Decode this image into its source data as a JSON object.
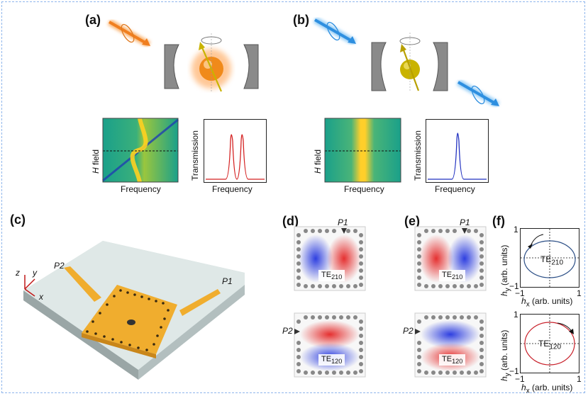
{
  "panels": {
    "a": {
      "label": "(a)"
    },
    "b": {
      "label": "(b)"
    },
    "c": {
      "label": "(c)"
    },
    "d": {
      "label": "(d)"
    },
    "e": {
      "label": "(e)"
    },
    "f": {
      "label": "(f)"
    }
  },
  "plots_a": {
    "heatmap_ylabel_italic": "H",
    "heatmap_ylabel_rest": " field",
    "heatmap_xlabel": "Frequency",
    "trans_ylabel": "Transmission",
    "trans_xlabel": "Frequency"
  },
  "plots_b": {
    "heatmap_ylabel_italic": "H",
    "heatmap_ylabel_rest": " field",
    "heatmap_xlabel": "Frequency",
    "trans_ylabel": "Transmission",
    "trans_xlabel": "Frequency"
  },
  "device": {
    "port1": "P1",
    "port2": "P2",
    "axis_x": "x",
    "axis_y": "y",
    "axis_z": "z"
  },
  "modes": {
    "d_top": {
      "port": "P1",
      "mode": "TE",
      "sub": "210"
    },
    "d_bottom": {
      "port": "P2",
      "mode": "TE",
      "sub": "120"
    },
    "e_top": {
      "port": "P1",
      "mode": "TE",
      "sub": "210"
    },
    "e_bottom": {
      "port": "P2",
      "mode": "TE",
      "sub": "120"
    }
  },
  "polar_top": {
    "mode": "TE",
    "sub": "210",
    "y_tick_top": "1",
    "y_tick_bottom": "−1",
    "x_tick_left": "−1",
    "x_tick_right": "1",
    "xlabel_var": "h",
    "xlabel_sub": "x",
    "xlabel_rest": " (arb. units)",
    "ylabel_var": "h",
    "ylabel_sub": "y",
    "ylabel_rest": " (arb. units)"
  },
  "polar_bottom": {
    "mode": "TE",
    "sub": "120",
    "y_tick_top": "1",
    "y_tick_bottom": "−1",
    "x_tick_left": "−1",
    "x_tick_right": "1",
    "xlabel_var": "h",
    "xlabel_sub": "x",
    "xlabel_rest": " (arb. units)",
    "ylabel_var": "h",
    "ylabel_sub": "y",
    "ylabel_rest": " (arb. units)"
  },
  "colors": {
    "orange_arrow": "#f28a2e",
    "blue_arrow": "#2e8fe0",
    "gold_pad": "#f2b233",
    "red_mode": "#e53030",
    "blue_mode": "#2e3fe0",
    "trans_red": "#d42020",
    "trans_blue": "#2030c0",
    "ellipse_blue": "#2c4f86",
    "ellipse_red": "#c8202a"
  }
}
